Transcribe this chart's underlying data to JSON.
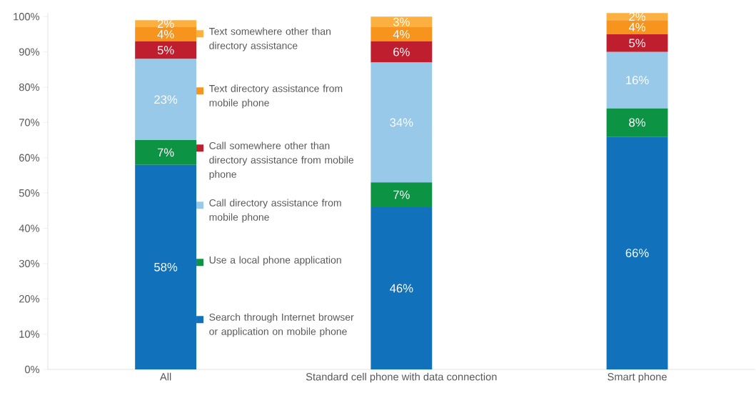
{
  "chart_data": {
    "type": "bar",
    "stacked": true,
    "categories": [
      "All",
      "Standard cell phone with data connection",
      "Smart phone"
    ],
    "series": [
      {
        "name": "Search through Internet browser or application on mobile phone",
        "color": "#1172bb",
        "values": [
          58,
          46,
          66
        ],
        "value_labels": [
          "58%",
          "46%",
          "66%"
        ]
      },
      {
        "name": "Use a local phone application",
        "color": "#0d9344",
        "values": [
          7,
          7,
          8
        ],
        "value_labels": [
          "7%",
          "7%",
          "8%"
        ]
      },
      {
        "name": "Call directory assistance from mobile phone",
        "color": "#98c9e8",
        "values": [
          23,
          34,
          16
        ],
        "value_labels": [
          "23%",
          "34%",
          "16%"
        ]
      },
      {
        "name": "Call somewhere other than directory assistance from mobile phone",
        "color": "#be1e2d",
        "values": [
          5,
          6,
          5
        ],
        "value_labels": [
          "5%",
          "6%",
          "5%"
        ]
      },
      {
        "name": "Text directory assistance from mobile phone",
        "color": "#f7941d",
        "values": [
          4,
          4,
          4
        ],
        "value_labels": [
          "4%",
          "4%",
          "4%"
        ]
      },
      {
        "name": "Text somewhere other than directory assistance",
        "color": "#fbb040",
        "values": [
          2,
          3,
          2
        ],
        "value_labels": [
          "2%",
          "3%",
          "2%"
        ]
      }
    ],
    "ylim": [
      0,
      101
    ],
    "yticks": [
      {
        "value": 0,
        "label": "0%"
      },
      {
        "value": 10,
        "label": "10%"
      },
      {
        "value": 20,
        "label": "20%"
      },
      {
        "value": 30,
        "label": "30%"
      },
      {
        "value": 40,
        "label": "40%"
      },
      {
        "value": 50,
        "label": "50%"
      },
      {
        "value": 60,
        "label": "60%"
      },
      {
        "value": 70,
        "label": "70%"
      },
      {
        "value": 80,
        "label": "80%"
      },
      {
        "value": 90,
        "label": "90%"
      },
      {
        "value": 100,
        "label": "100%"
      }
    ],
    "legend": "top left",
    "grid": false
  }
}
